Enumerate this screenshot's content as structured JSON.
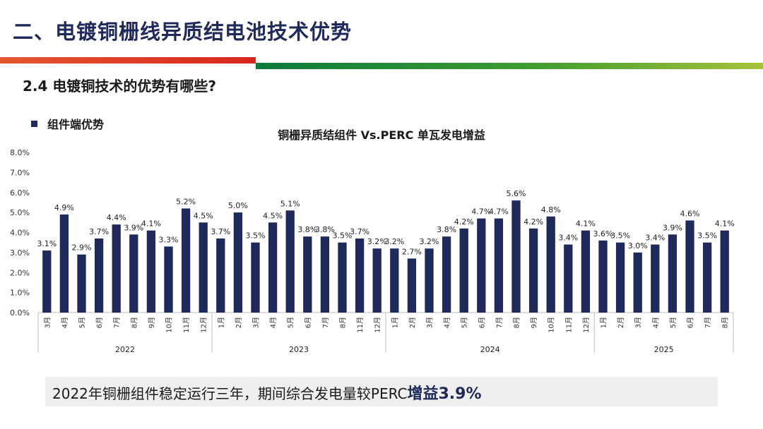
{
  "header": {
    "title": "二、电镀铜栅线异质结电池技术优势",
    "subtitle": "2.4 电镀铜技术的优势有哪些?",
    "bullet": "组件端优势"
  },
  "colors": {
    "bar": "#1f2a5a",
    "title": "#1f2a5a",
    "band_red": "#d7261e",
    "band_green": "#2f8f3a"
  },
  "chart_data": {
    "type": "bar",
    "title": "铜栅异质结组件 Vs.PERC 单瓦发电增益",
    "ylim": [
      0,
      8
    ],
    "yticks": [
      "0.0%",
      "1.0%",
      "2.0%",
      "3.0%",
      "4.0%",
      "5.0%",
      "6.0%",
      "7.0%",
      "8.0%"
    ],
    "groups": [
      {
        "year": "2022",
        "months": [
          "3月",
          "4月",
          "5月",
          "6月",
          "7月",
          "8月",
          "9月",
          "10月",
          "11月",
          "12月"
        ],
        "values": [
          3.1,
          4.9,
          2.9,
          3.7,
          4.4,
          3.9,
          4.1,
          3.3,
          5.2,
          4.5
        ],
        "labels": [
          "3.1%",
          "4.9%",
          "2.9%",
          "3.7%",
          "4.4%",
          "3.9%",
          "4.1%",
          "3.3%",
          "5.2%",
          "4.5%"
        ]
      },
      {
        "year": "2023",
        "months": [
          "1月",
          "2月",
          "3月",
          "4月",
          "5月",
          "6月",
          "7月",
          "8月",
          "11月",
          "12月"
        ],
        "values": [
          3.7,
          5.0,
          3.5,
          4.5,
          5.1,
          3.8,
          3.8,
          3.5,
          3.7,
          3.2
        ],
        "labels": [
          "3.7%",
          "5.0%",
          "3.5%",
          "4.5%",
          "5.1%",
          "3.8%",
          "3.8%",
          "3.5%",
          "3.7%",
          "3.2%"
        ]
      },
      {
        "year": "2024",
        "months": [
          "1月",
          "2月",
          "3月",
          "4月",
          "5月",
          "6月",
          "7月",
          "8月",
          "9月",
          "10月",
          "11月",
          "12月"
        ],
        "values": [
          3.2,
          2.7,
          3.2,
          3.8,
          4.2,
          4.7,
          4.7,
          5.6,
          4.2,
          4.8,
          3.4,
          4.1
        ],
        "labels": [
          "3.2%",
          "2.7%",
          "3.2%",
          "3.8%",
          "4.2%",
          "4.7%",
          "4.7%",
          "5.6%",
          "4.2%",
          "4.8%",
          "3.4%",
          "4.1%"
        ]
      },
      {
        "year": "2025",
        "months": [
          "1月",
          "2月",
          "3月",
          "4月",
          "5月",
          "6月",
          "7月",
          "8月"
        ],
        "values": [
          3.6,
          3.5,
          3.0,
          3.4,
          3.9,
          4.6,
          3.5,
          4.1
        ],
        "labels": [
          "3.6%",
          "3.5%",
          "3.0%",
          "3.4%",
          "3.9%",
          "4.6%",
          "3.5%",
          "4.1%"
        ]
      }
    ]
  },
  "summary": {
    "text": "2022年铜栅组件稳定运行三年，期间综合发电量较PERC",
    "highlight": "增益3.9%"
  }
}
